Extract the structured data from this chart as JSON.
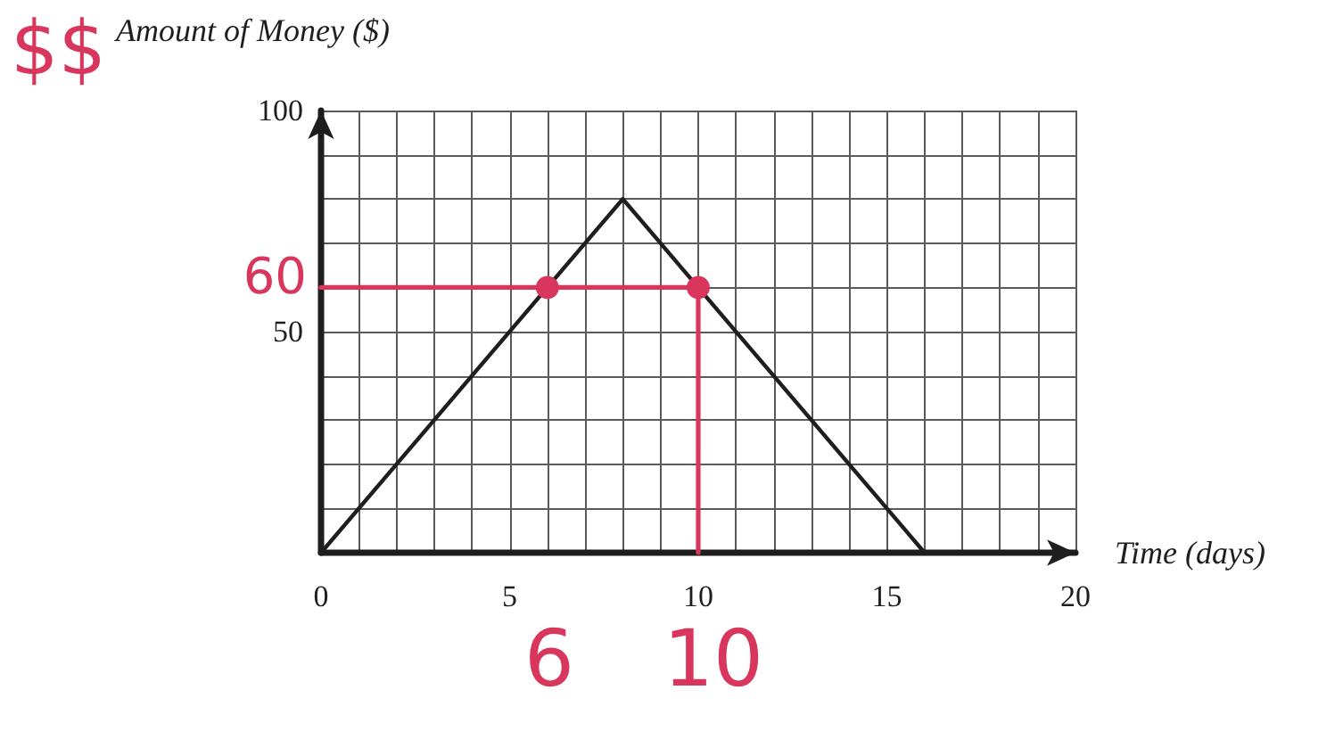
{
  "chart_data": {
    "type": "line",
    "xlabel": "Time (days)",
    "ylabel": "Amount of Money ($)",
    "x": [
      0,
      8,
      16
    ],
    "series": [
      {
        "color": "#1e1e1e",
        "values": [
          0,
          80,
          0
        ]
      },
      {
        "type": "line",
        "color": "#d9365e",
        "x": [
          0,
          10,
          10
        ],
        "values": [
          60,
          60,
          0
        ]
      },
      {
        "type": "scatter",
        "marker": "circle",
        "color": "#d9365e",
        "x": [
          6,
          10
        ],
        "values": [
          60,
          60
        ]
      }
    ],
    "xlim": [
      0,
      20
    ],
    "ylim": [
      0,
      100
    ],
    "xticks": [
      0,
      {
        "value": 1,
        "label": null
      },
      {
        "value": 2,
        "label": null
      },
      {
        "value": 3,
        "label": null
      },
      {
        "value": 4,
        "label": null
      },
      5,
      {
        "value": 6,
        "label": null
      },
      {
        "value": 7,
        "label": null
      },
      {
        "value": 8,
        "label": null
      },
      {
        "value": 9,
        "label": null
      },
      10,
      {
        "value": 11,
        "label": null
      },
      {
        "value": 12,
        "label": null
      },
      {
        "value": 13,
        "label": null
      },
      {
        "value": 14,
        "label": null
      },
      15,
      {
        "value": 16,
        "label": null
      },
      {
        "value": 17,
        "label": null
      },
      {
        "value": 18,
        "label": null
      },
      {
        "value": 19,
        "label": null
      },
      20
    ],
    "yticks": [
      {
        "value": 0,
        "label": null
      },
      {
        "value": 10,
        "label": null
      },
      {
        "value": 20,
        "label": null
      },
      {
        "value": 30,
        "label": null
      },
      {
        "value": 40,
        "label": null
      },
      50,
      {
        "value": 60,
        "label": null
      },
      {
        "value": 70,
        "label": null
      },
      {
        "value": 80,
        "label": null
      },
      {
        "value": 90,
        "label": null
      },
      100
    ],
    "grid": true,
    "marker": "none",
    "annotations": [
      "$$",
      "60",
      "6",
      "10"
    ]
  }
}
